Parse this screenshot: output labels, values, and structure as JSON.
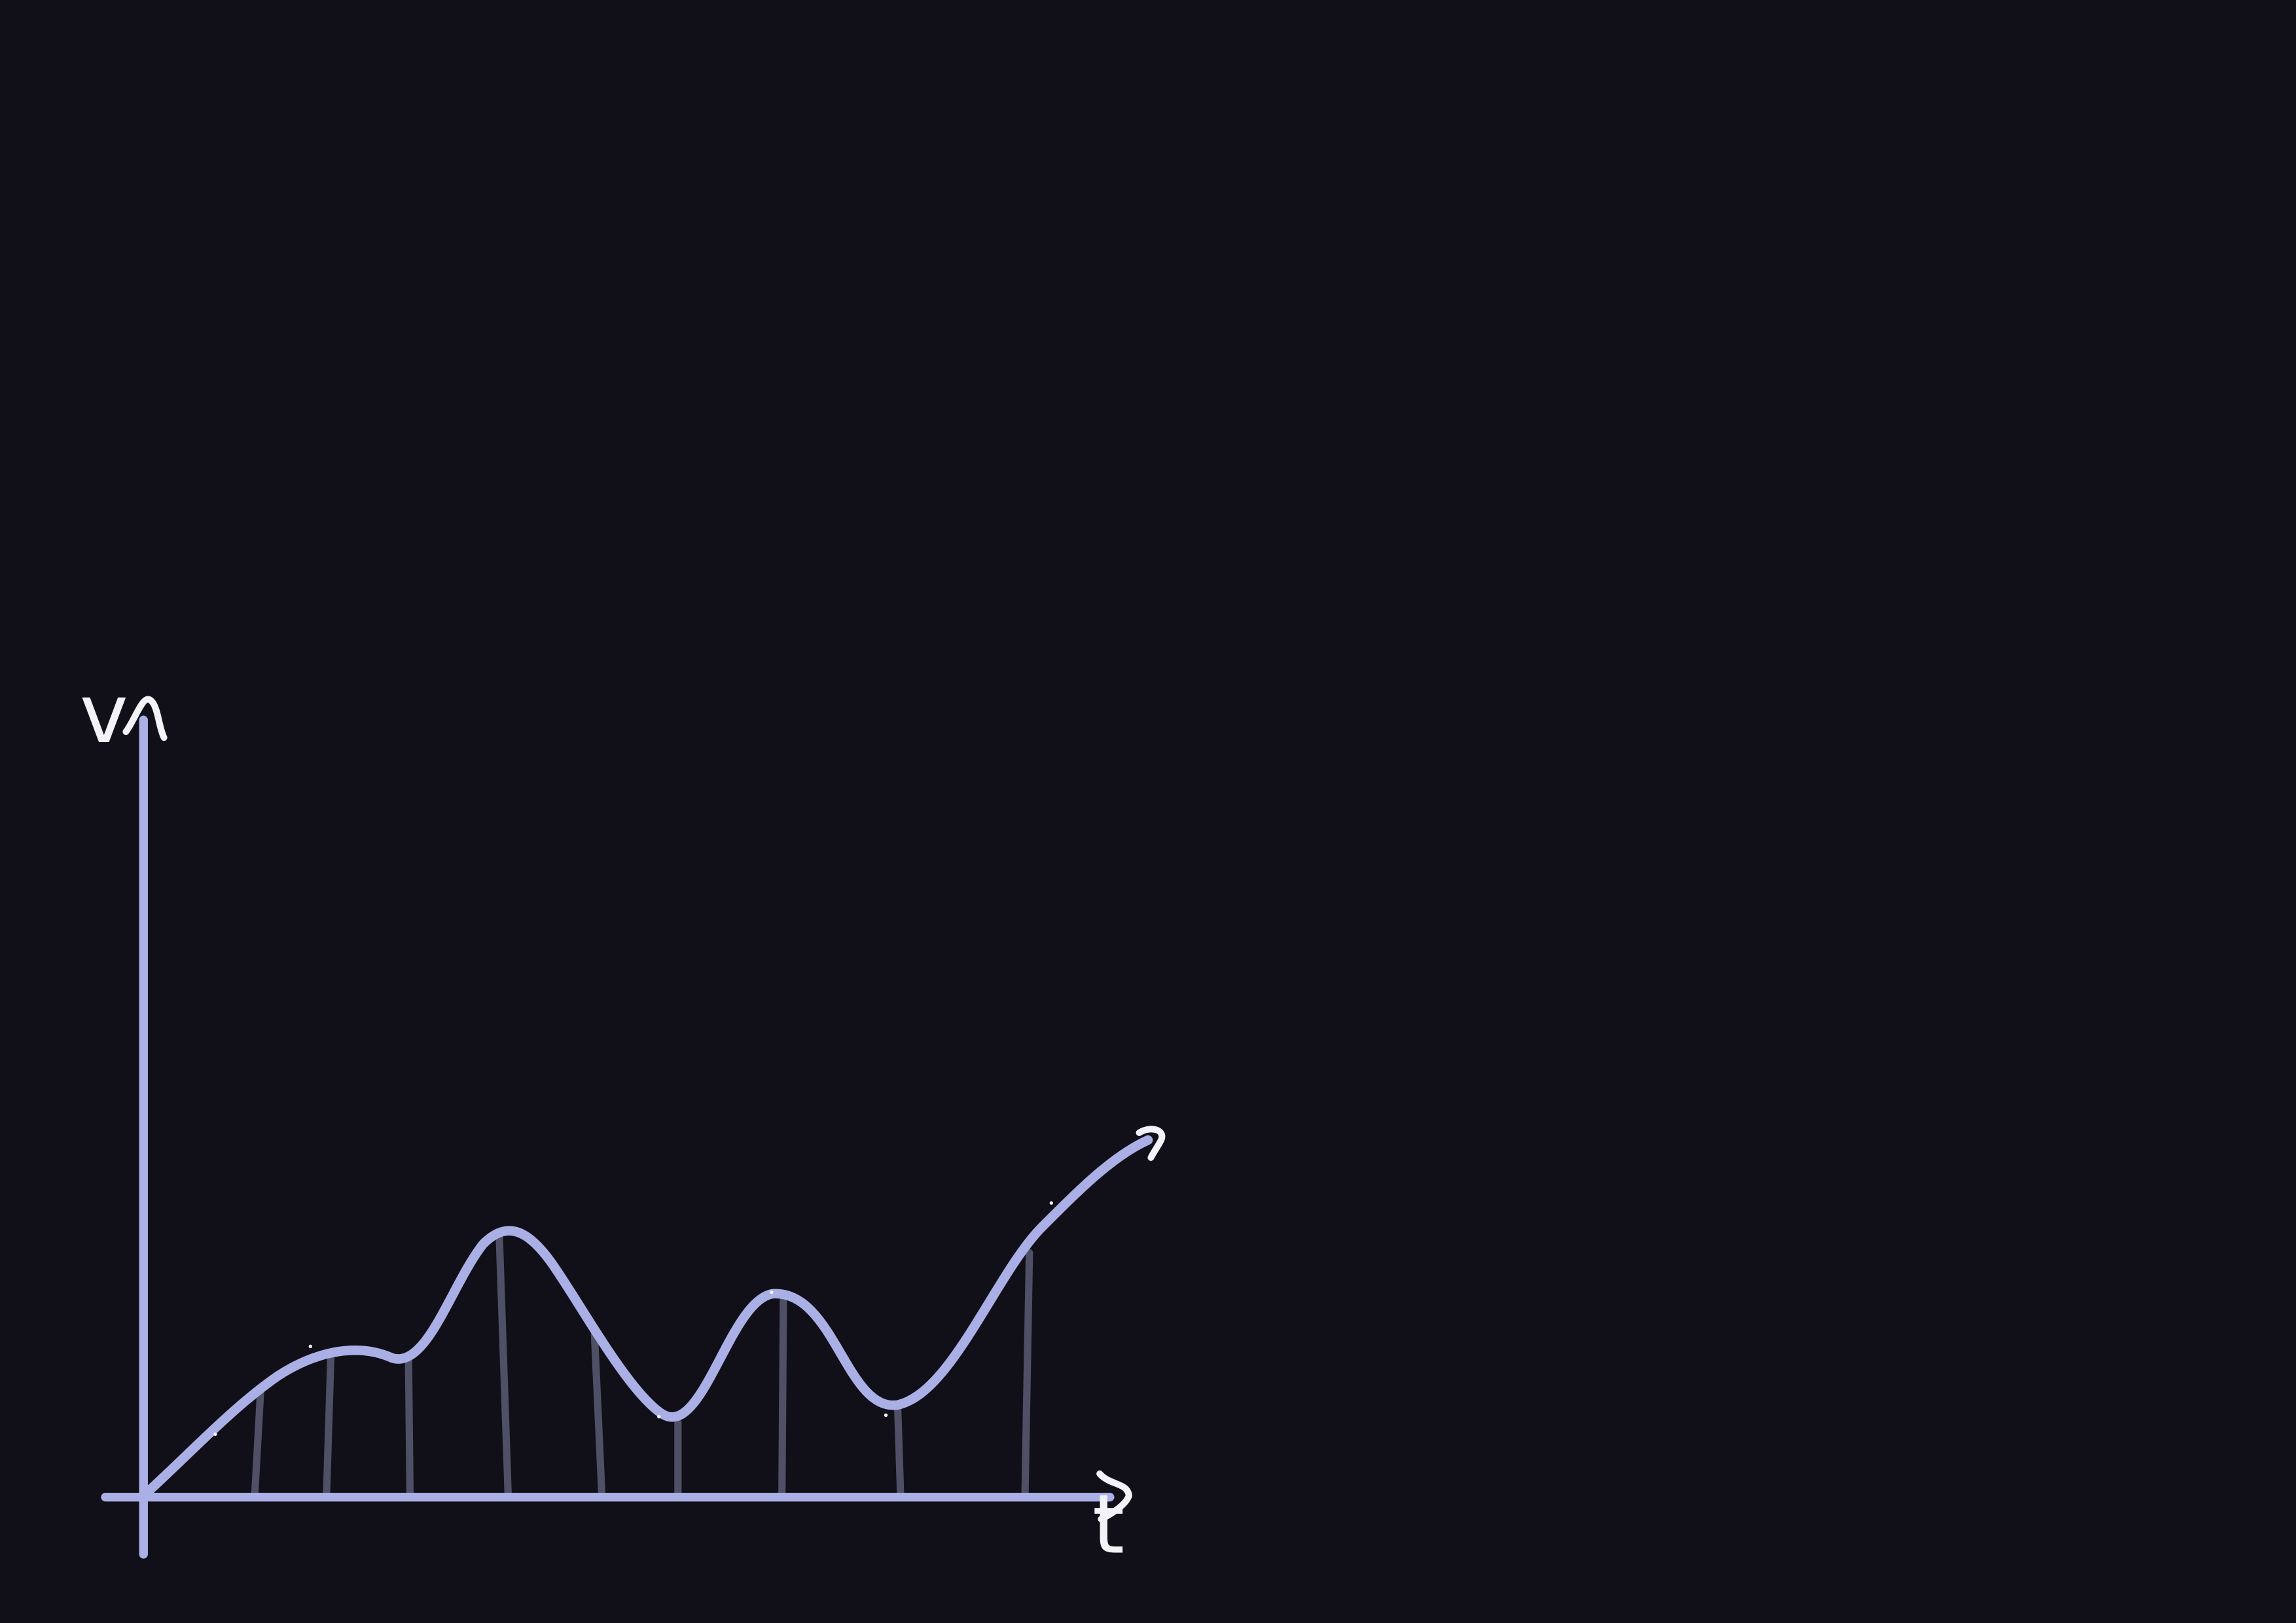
{
  "diagram": {
    "y_axis_label": "v",
    "x_axis_label": "t",
    "colors": {
      "background": "#110f18",
      "axes": "#aab0e6",
      "curve": "#aab0e6",
      "stems": "#4e5066",
      "annotations": "#f2f2f7"
    }
  }
}
